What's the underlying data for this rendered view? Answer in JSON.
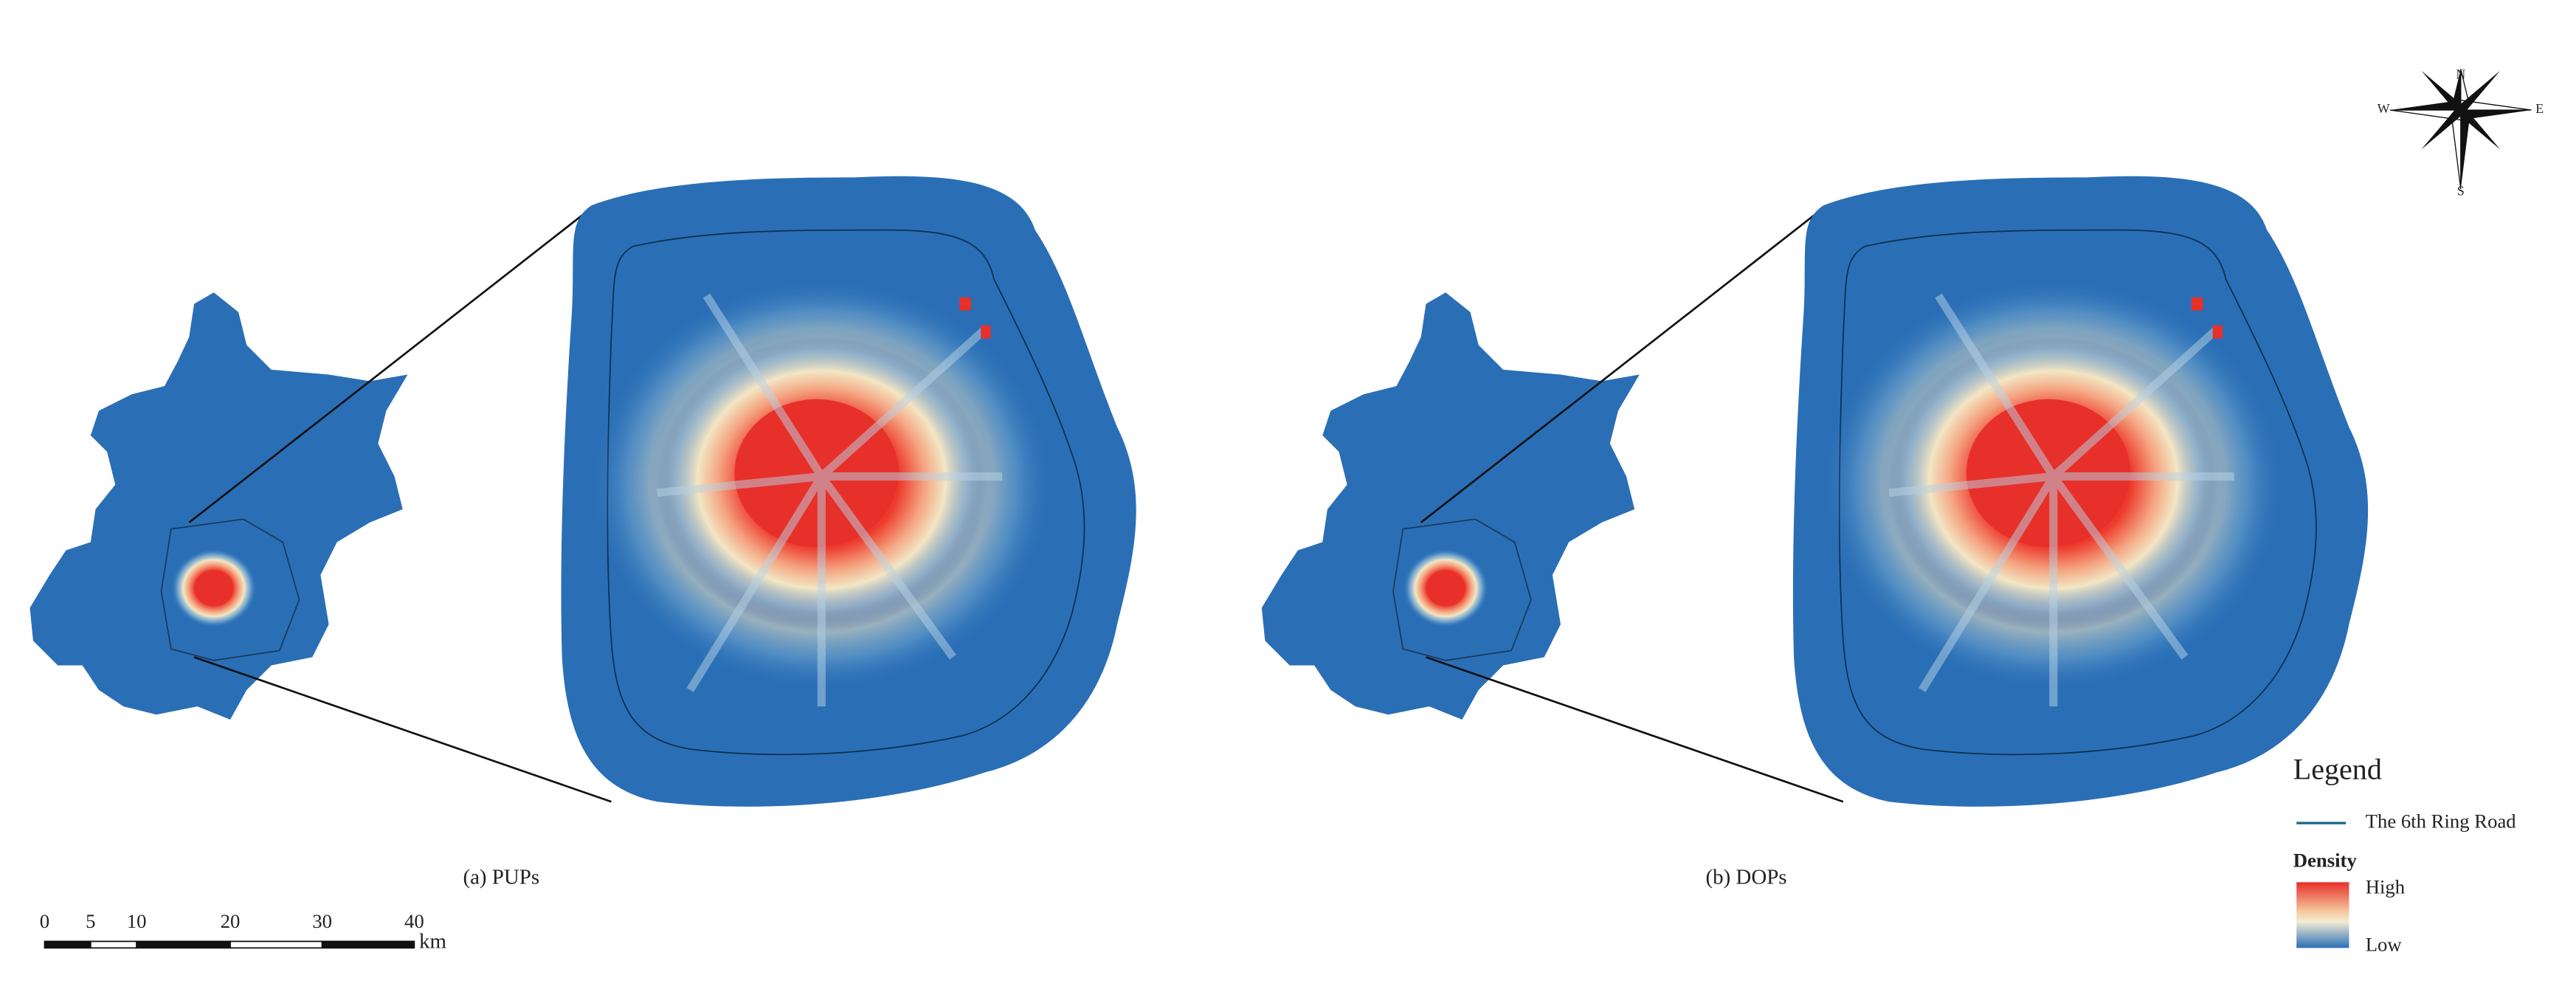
{
  "panels": [
    {
      "caption": "(a) PUPs"
    },
    {
      "caption": "(b) DOPs"
    }
  ],
  "legend": {
    "title": "Legend",
    "ring_road": "The 6th Ring Road",
    "density_title": "Density",
    "high": "High",
    "low": "Low"
  },
  "scale_bar": {
    "labels": [
      "0",
      "5",
      "10",
      "20",
      "30",
      "40"
    ],
    "unit": "km"
  },
  "compass": {
    "n": "N",
    "s": "S",
    "w": "W",
    "e": "E"
  }
}
